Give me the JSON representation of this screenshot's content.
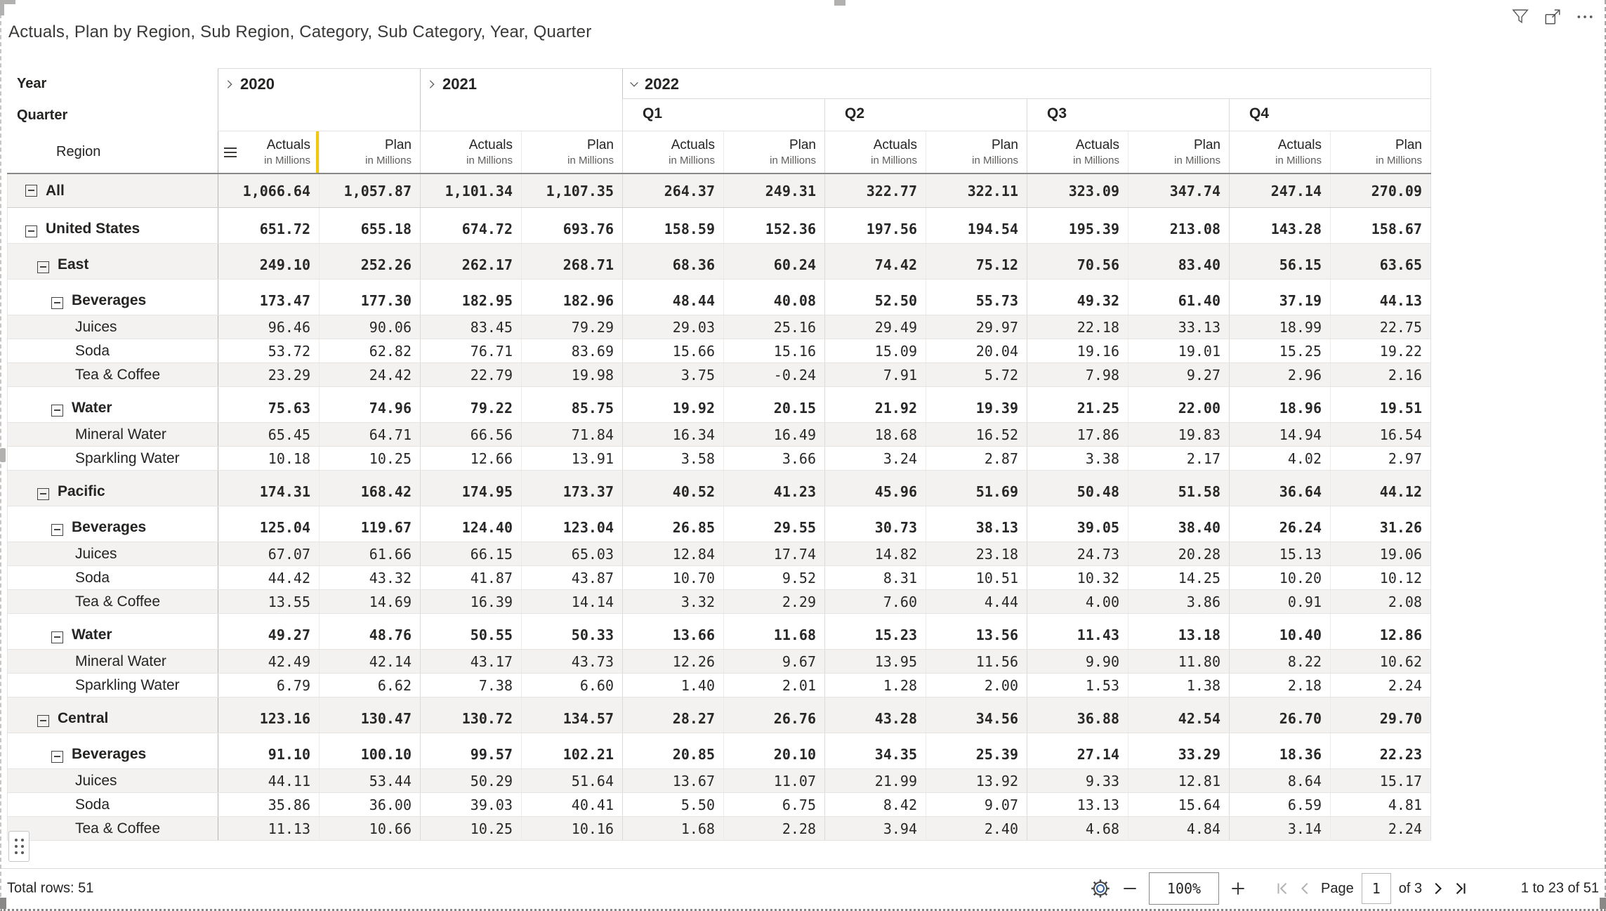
{
  "title": "Actuals, Plan by Region, Sub Region, Category, Sub Category, Year, Quarter",
  "toolbar": {
    "filter": "filter",
    "focus_mode": "focus-mode",
    "more_options": "more-options"
  },
  "matrix": {
    "corner": {
      "year": "Year",
      "quarter": "Quarter",
      "region": "Region"
    },
    "measure": {
      "actuals": "Actuals",
      "plan": "Plan",
      "subtitle": "in Millions"
    },
    "years": [
      {
        "label": "2020",
        "state": "collapsed"
      },
      {
        "label": "2021",
        "state": "collapsed"
      },
      {
        "label": "2022",
        "state": "expanded",
        "quarters": [
          "Q1",
          "Q2",
          "Q3",
          "Q4"
        ]
      }
    ],
    "rows": [
      {
        "label": "All",
        "level": 0,
        "expandable": true,
        "bold": true,
        "tall": false,
        "values": [
          "1,066.64",
          "1,057.87",
          "1,101.34",
          "1,107.35",
          "264.37",
          "249.31",
          "322.77",
          "322.11",
          "323.09",
          "347.74",
          "247.14",
          "270.09"
        ]
      },
      {
        "label": "United States",
        "level": 1,
        "expandable": true,
        "bold": true,
        "tall": true,
        "values": [
          "651.72",
          "655.18",
          "674.72",
          "693.76",
          "158.59",
          "152.36",
          "197.56",
          "194.54",
          "195.39",
          "213.08",
          "143.28",
          "158.67"
        ]
      },
      {
        "label": "East",
        "level": 2,
        "expandable": true,
        "bold": true,
        "tall": true,
        "values": [
          "249.10",
          "252.26",
          "262.17",
          "268.71",
          "68.36",
          "60.24",
          "74.42",
          "75.12",
          "70.56",
          "83.40",
          "56.15",
          "63.65"
        ]
      },
      {
        "label": "Beverages",
        "level": 3,
        "expandable": true,
        "bold": true,
        "tall": true,
        "values": [
          "173.47",
          "177.30",
          "182.95",
          "182.96",
          "48.44",
          "40.08",
          "52.50",
          "55.73",
          "49.32",
          "61.40",
          "37.19",
          "44.13"
        ]
      },
      {
        "label": "Juices",
        "level": 4,
        "expandable": false,
        "bold": false,
        "tall": false,
        "values": [
          "96.46",
          "90.06",
          "83.45",
          "79.29",
          "29.03",
          "25.16",
          "29.49",
          "29.97",
          "22.18",
          "33.13",
          "18.99",
          "22.75"
        ]
      },
      {
        "label": "Soda",
        "level": 4,
        "expandable": false,
        "bold": false,
        "tall": false,
        "values": [
          "53.72",
          "62.82",
          "76.71",
          "83.69",
          "15.66",
          "15.16",
          "15.09",
          "20.04",
          "19.16",
          "19.01",
          "15.25",
          "19.22"
        ]
      },
      {
        "label": "Tea & Coffee",
        "level": 4,
        "expandable": false,
        "bold": false,
        "tall": false,
        "values": [
          "23.29",
          "24.42",
          "22.79",
          "19.98",
          "3.75",
          "-0.24",
          "7.91",
          "5.72",
          "7.98",
          "9.27",
          "2.96",
          "2.16"
        ]
      },
      {
        "label": "Water",
        "level": 3,
        "expandable": true,
        "bold": true,
        "tall": true,
        "values": [
          "75.63",
          "74.96",
          "79.22",
          "85.75",
          "19.92",
          "20.15",
          "21.92",
          "19.39",
          "21.25",
          "22.00",
          "18.96",
          "19.51"
        ]
      },
      {
        "label": "Mineral Water",
        "level": 4,
        "expandable": false,
        "bold": false,
        "tall": false,
        "values": [
          "65.45",
          "64.71",
          "66.56",
          "71.84",
          "16.34",
          "16.49",
          "18.68",
          "16.52",
          "17.86",
          "19.83",
          "14.94",
          "16.54"
        ]
      },
      {
        "label": "Sparkling Water",
        "level": 4,
        "expandable": false,
        "bold": false,
        "tall": false,
        "values": [
          "10.18",
          "10.25",
          "12.66",
          "13.91",
          "3.58",
          "3.66",
          "3.24",
          "2.87",
          "3.38",
          "2.17",
          "4.02",
          "2.97"
        ]
      },
      {
        "label": "Pacific",
        "level": 2,
        "expandable": true,
        "bold": true,
        "tall": true,
        "values": [
          "174.31",
          "168.42",
          "174.95",
          "173.37",
          "40.52",
          "41.23",
          "45.96",
          "51.69",
          "50.48",
          "51.58",
          "36.64",
          "44.12"
        ]
      },
      {
        "label": "Beverages",
        "level": 3,
        "expandable": true,
        "bold": true,
        "tall": true,
        "values": [
          "125.04",
          "119.67",
          "124.40",
          "123.04",
          "26.85",
          "29.55",
          "30.73",
          "38.13",
          "39.05",
          "38.40",
          "26.24",
          "31.26"
        ]
      },
      {
        "label": "Juices",
        "level": 4,
        "expandable": false,
        "bold": false,
        "tall": false,
        "values": [
          "67.07",
          "61.66",
          "66.15",
          "65.03",
          "12.84",
          "17.74",
          "14.82",
          "23.18",
          "24.73",
          "20.28",
          "15.13",
          "19.06"
        ]
      },
      {
        "label": "Soda",
        "level": 4,
        "expandable": false,
        "bold": false,
        "tall": false,
        "values": [
          "44.42",
          "43.32",
          "41.87",
          "43.87",
          "10.70",
          "9.52",
          "8.31",
          "10.51",
          "10.32",
          "14.25",
          "10.20",
          "10.12"
        ]
      },
      {
        "label": "Tea & Coffee",
        "level": 4,
        "expandable": false,
        "bold": false,
        "tall": false,
        "values": [
          "13.55",
          "14.69",
          "16.39",
          "14.14",
          "3.32",
          "2.29",
          "7.60",
          "4.44",
          "4.00",
          "3.86",
          "0.91",
          "2.08"
        ]
      },
      {
        "label": "Water",
        "level": 3,
        "expandable": true,
        "bold": true,
        "tall": true,
        "values": [
          "49.27",
          "48.76",
          "50.55",
          "50.33",
          "13.66",
          "11.68",
          "15.23",
          "13.56",
          "11.43",
          "13.18",
          "10.40",
          "12.86"
        ]
      },
      {
        "label": "Mineral Water",
        "level": 4,
        "expandable": false,
        "bold": false,
        "tall": false,
        "values": [
          "42.49",
          "42.14",
          "43.17",
          "43.73",
          "12.26",
          "9.67",
          "13.95",
          "11.56",
          "9.90",
          "11.80",
          "8.22",
          "10.62"
        ]
      },
      {
        "label": "Sparkling Water",
        "level": 4,
        "expandable": false,
        "bold": false,
        "tall": false,
        "values": [
          "6.79",
          "6.62",
          "7.38",
          "6.60",
          "1.40",
          "2.01",
          "1.28",
          "2.00",
          "1.53",
          "1.38",
          "2.18",
          "2.24"
        ]
      },
      {
        "label": "Central",
        "level": 2,
        "expandable": true,
        "bold": true,
        "tall": true,
        "values": [
          "123.16",
          "130.47",
          "130.72",
          "134.57",
          "28.27",
          "26.76",
          "43.28",
          "34.56",
          "36.88",
          "42.54",
          "26.70",
          "29.70"
        ]
      },
      {
        "label": "Beverages",
        "level": 3,
        "expandable": true,
        "bold": true,
        "tall": true,
        "values": [
          "91.10",
          "100.10",
          "99.57",
          "102.21",
          "20.85",
          "20.10",
          "34.35",
          "25.39",
          "27.14",
          "33.29",
          "18.36",
          "22.23"
        ]
      },
      {
        "label": "Juices",
        "level": 4,
        "expandable": false,
        "bold": false,
        "tall": false,
        "values": [
          "44.11",
          "53.44",
          "50.29",
          "51.64",
          "13.67",
          "11.07",
          "21.99",
          "13.92",
          "9.33",
          "12.81",
          "8.64",
          "15.17"
        ]
      },
      {
        "label": "Soda",
        "level": 4,
        "expandable": false,
        "bold": false,
        "tall": false,
        "values": [
          "35.86",
          "36.00",
          "39.03",
          "40.41",
          "5.50",
          "6.75",
          "8.42",
          "9.07",
          "13.13",
          "15.64",
          "6.59",
          "4.81"
        ]
      },
      {
        "label": "Tea & Coffee",
        "level": 4,
        "expandable": false,
        "bold": false,
        "tall": false,
        "values": [
          "11.13",
          "10.66",
          "10.25",
          "10.16",
          "1.68",
          "2.28",
          "3.94",
          "2.40",
          "4.68",
          "4.84",
          "3.14",
          "2.24"
        ]
      }
    ]
  },
  "footer": {
    "total_rows": "Total rows: 51",
    "zoom": {
      "value": "100%"
    },
    "pager": {
      "page_label": "Page",
      "current": "1",
      "of_label": "of 3"
    },
    "range": "1 to 23 of 51"
  },
  "colors": {
    "accent_yellow": "#F2C80F",
    "band": "#f3f2f1"
  }
}
